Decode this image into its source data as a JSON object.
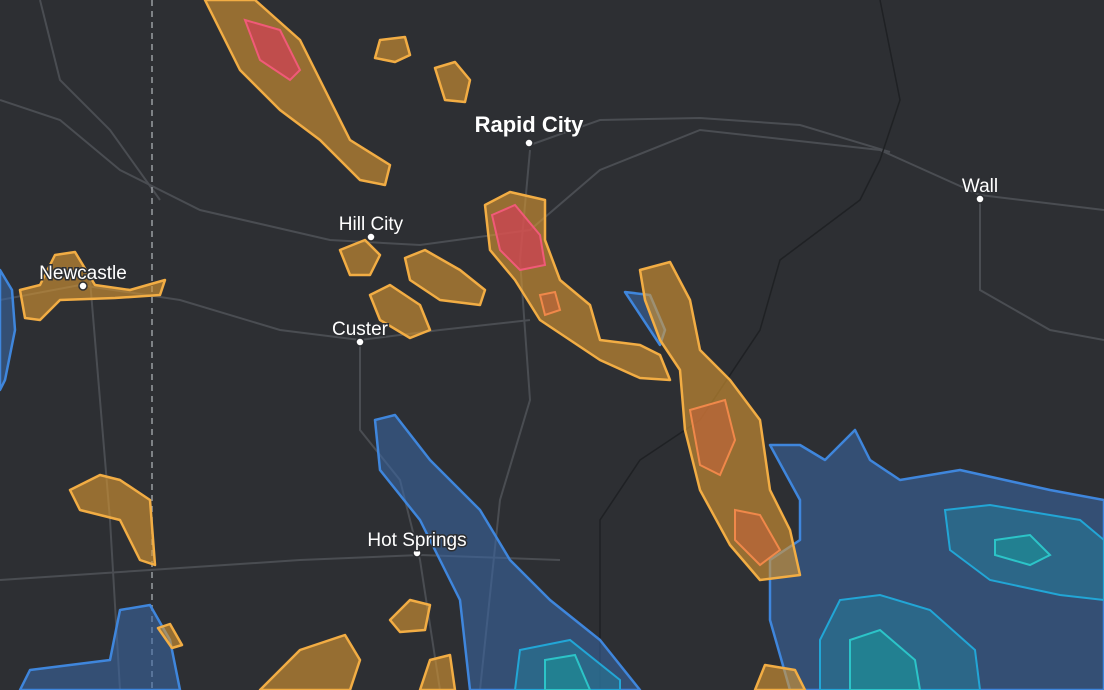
{
  "cities": [
    {
      "label": "Rapid City"
    },
    {
      "label": "Wall"
    },
    {
      "label": "Hill City"
    },
    {
      "label": "Newcastle"
    },
    {
      "label": "Custer"
    },
    {
      "label": "Hot Springs"
    }
  ]
}
